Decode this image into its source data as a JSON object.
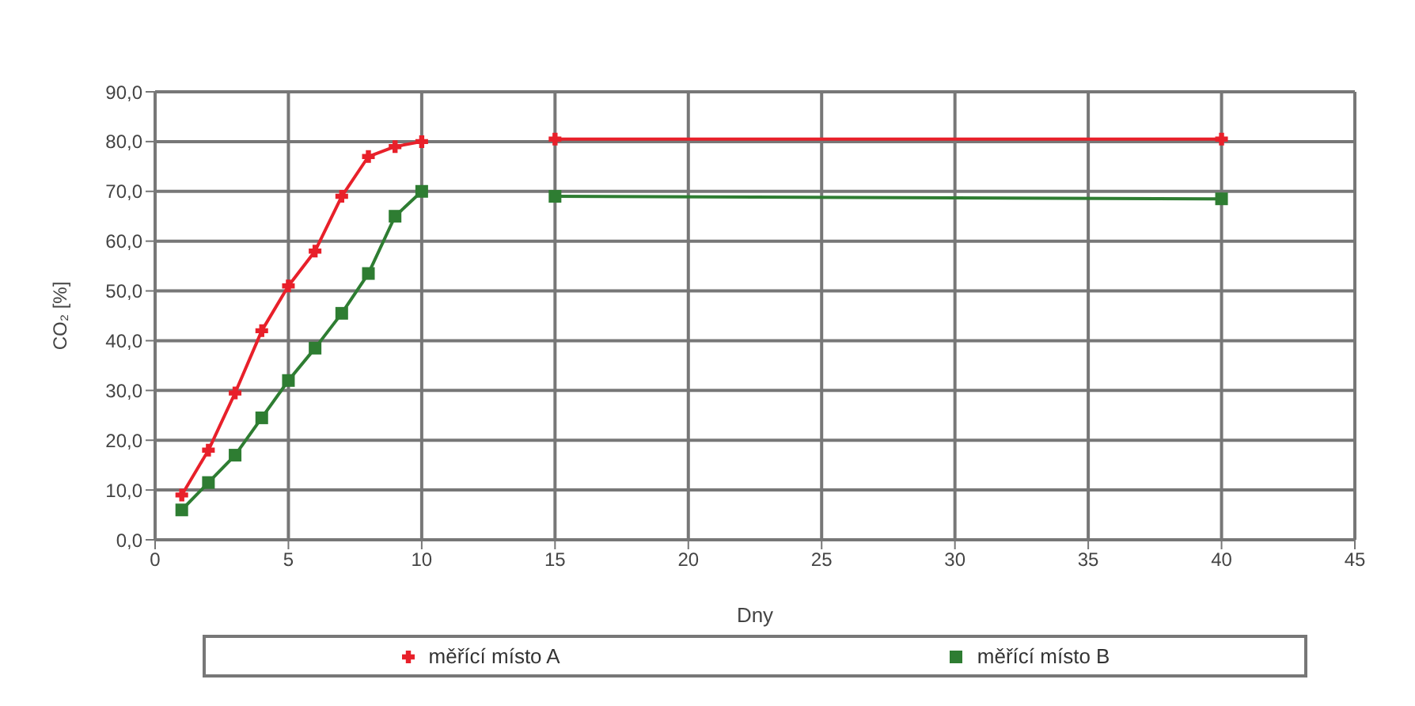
{
  "chart_data": {
    "type": "line",
    "xlabel": "Dny",
    "ylabel": "CO₂ [%]",
    "x": [
      1,
      2,
      3,
      4,
      5,
      6,
      7,
      8,
      9,
      10,
      12,
      15,
      40
    ],
    "series": [
      {
        "name": "měřící místo A",
        "color": "#e8202a",
        "marker": "cross",
        "values": [
          9,
          18,
          29.5,
          42,
          51,
          58,
          69,
          77,
          79,
          80,
          null,
          80.5,
          80.5
        ]
      },
      {
        "name": "měřící místo B",
        "color": "#2e7d32",
        "marker": "square",
        "values": [
          6,
          11.5,
          17,
          24.5,
          32,
          38.5,
          45.5,
          53.5,
          65,
          70,
          null,
          69,
          68.5
        ]
      }
    ],
    "xlim": [
      0,
      45
    ],
    "xticks": [
      0,
      5,
      10,
      15,
      20,
      25,
      30,
      35,
      40,
      45
    ],
    "ylim": [
      0,
      90
    ],
    "yticks": [
      {
        "value": 0,
        "label": "0,0"
      },
      {
        "value": 10,
        "label": "10,0"
      },
      {
        "value": 20,
        "label": "20,0"
      },
      {
        "value": 30,
        "label": "30,0"
      },
      {
        "value": 40,
        "label": "40,0"
      },
      {
        "value": 50,
        "label": "50,0"
      },
      {
        "value": 60,
        "label": "60,0"
      },
      {
        "value": 70,
        "label": "70,0"
      },
      {
        "value": 80,
        "label": "80,0"
      },
      {
        "value": 90,
        "label": "90,0"
      }
    ],
    "grid": true,
    "legend": "bottom",
    "line_style": "solid"
  }
}
